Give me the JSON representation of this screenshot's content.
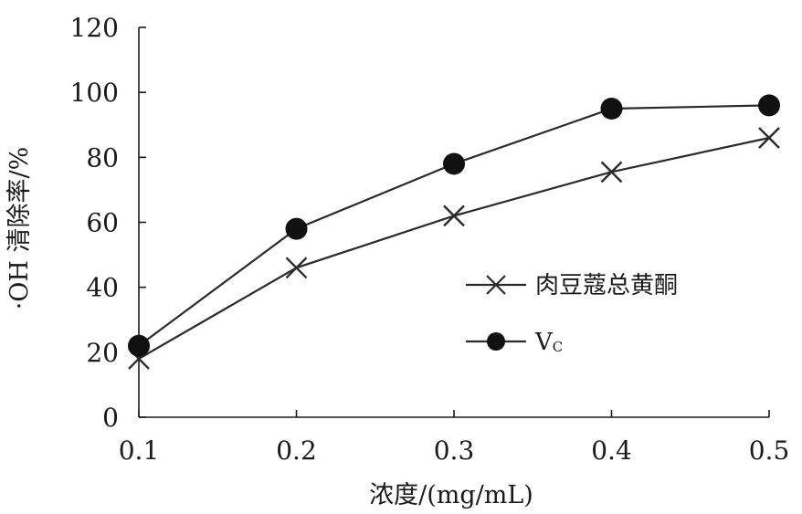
{
  "chart_data": {
    "type": "line",
    "x": [
      0.1,
      0.2,
      0.3,
      0.4,
      0.5
    ],
    "x_tick_labels": [
      "0.1",
      "0.2",
      "0.3",
      "0.4",
      "0.5"
    ],
    "y_tick_labels": [
      "0",
      "20",
      "40",
      "60",
      "80",
      "100",
      "120"
    ],
    "xlim": [
      0.1,
      0.5
    ],
    "ylim": [
      0,
      120
    ],
    "xlabel": "浓度/(mg/mL)",
    "ylabel": "·OH 清除率/%",
    "grid": false,
    "legend_position": "right-center",
    "series": [
      {
        "name": "肉豆蔻总黄酮",
        "marker": "cross",
        "values": [
          18,
          46,
          62,
          75.5,
          86
        ]
      },
      {
        "name": "Vc",
        "name_main": "V",
        "name_sub": "C",
        "marker": "filled-circle",
        "values": [
          22,
          58,
          78,
          95,
          96
        ]
      }
    ],
    "colors": {
      "line": "#2a2a2a",
      "text": "#1a1a1a"
    }
  }
}
